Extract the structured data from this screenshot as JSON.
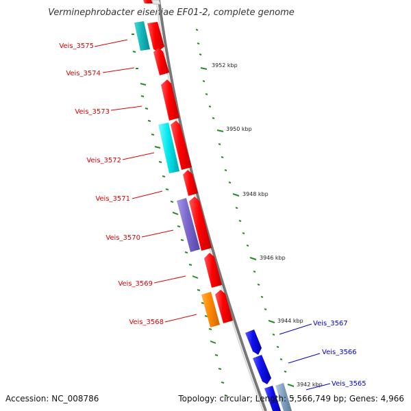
{
  "title": "Verminephrobacter eiseniae EF01-2, complete genome",
  "footer": {
    "accession": "Accession: NC_008786",
    "summary": "Topology: circular; Length: 5,566,749 bp; Genes: 4,966"
  },
  "colors": {
    "reverse_strand_label": "#dd0000",
    "forward_strand_label": "#0000cc",
    "red": "#ff0000",
    "cyan": "#00e8ee",
    "violet": "#7b68cc",
    "orange": "#ff8800",
    "blue": "#1010ee",
    "backbone": "#888888",
    "tick": "#228b22"
  },
  "ticks": [
    {
      "label": "3952 kbp"
    },
    {
      "label": "3950 kbp"
    },
    {
      "label": "3948 kbp"
    },
    {
      "label": "3946 kbp"
    },
    {
      "label": "3944 kbp"
    },
    {
      "label": "3942 kbp"
    }
  ],
  "gene_labels_left": [
    {
      "name": "Veis_3575"
    },
    {
      "name": "Veis_3574"
    },
    {
      "name": "Veis_3573"
    },
    {
      "name": "Veis_3572"
    },
    {
      "name": "Veis_3571"
    },
    {
      "name": "Veis_3570"
    },
    {
      "name": "Veis_3569"
    },
    {
      "name": "Veis_3568"
    }
  ],
  "gene_labels_right": [
    {
      "name": "Veis_3567"
    },
    {
      "name": "Veis_3566"
    },
    {
      "name": "Veis_3565"
    }
  ]
}
